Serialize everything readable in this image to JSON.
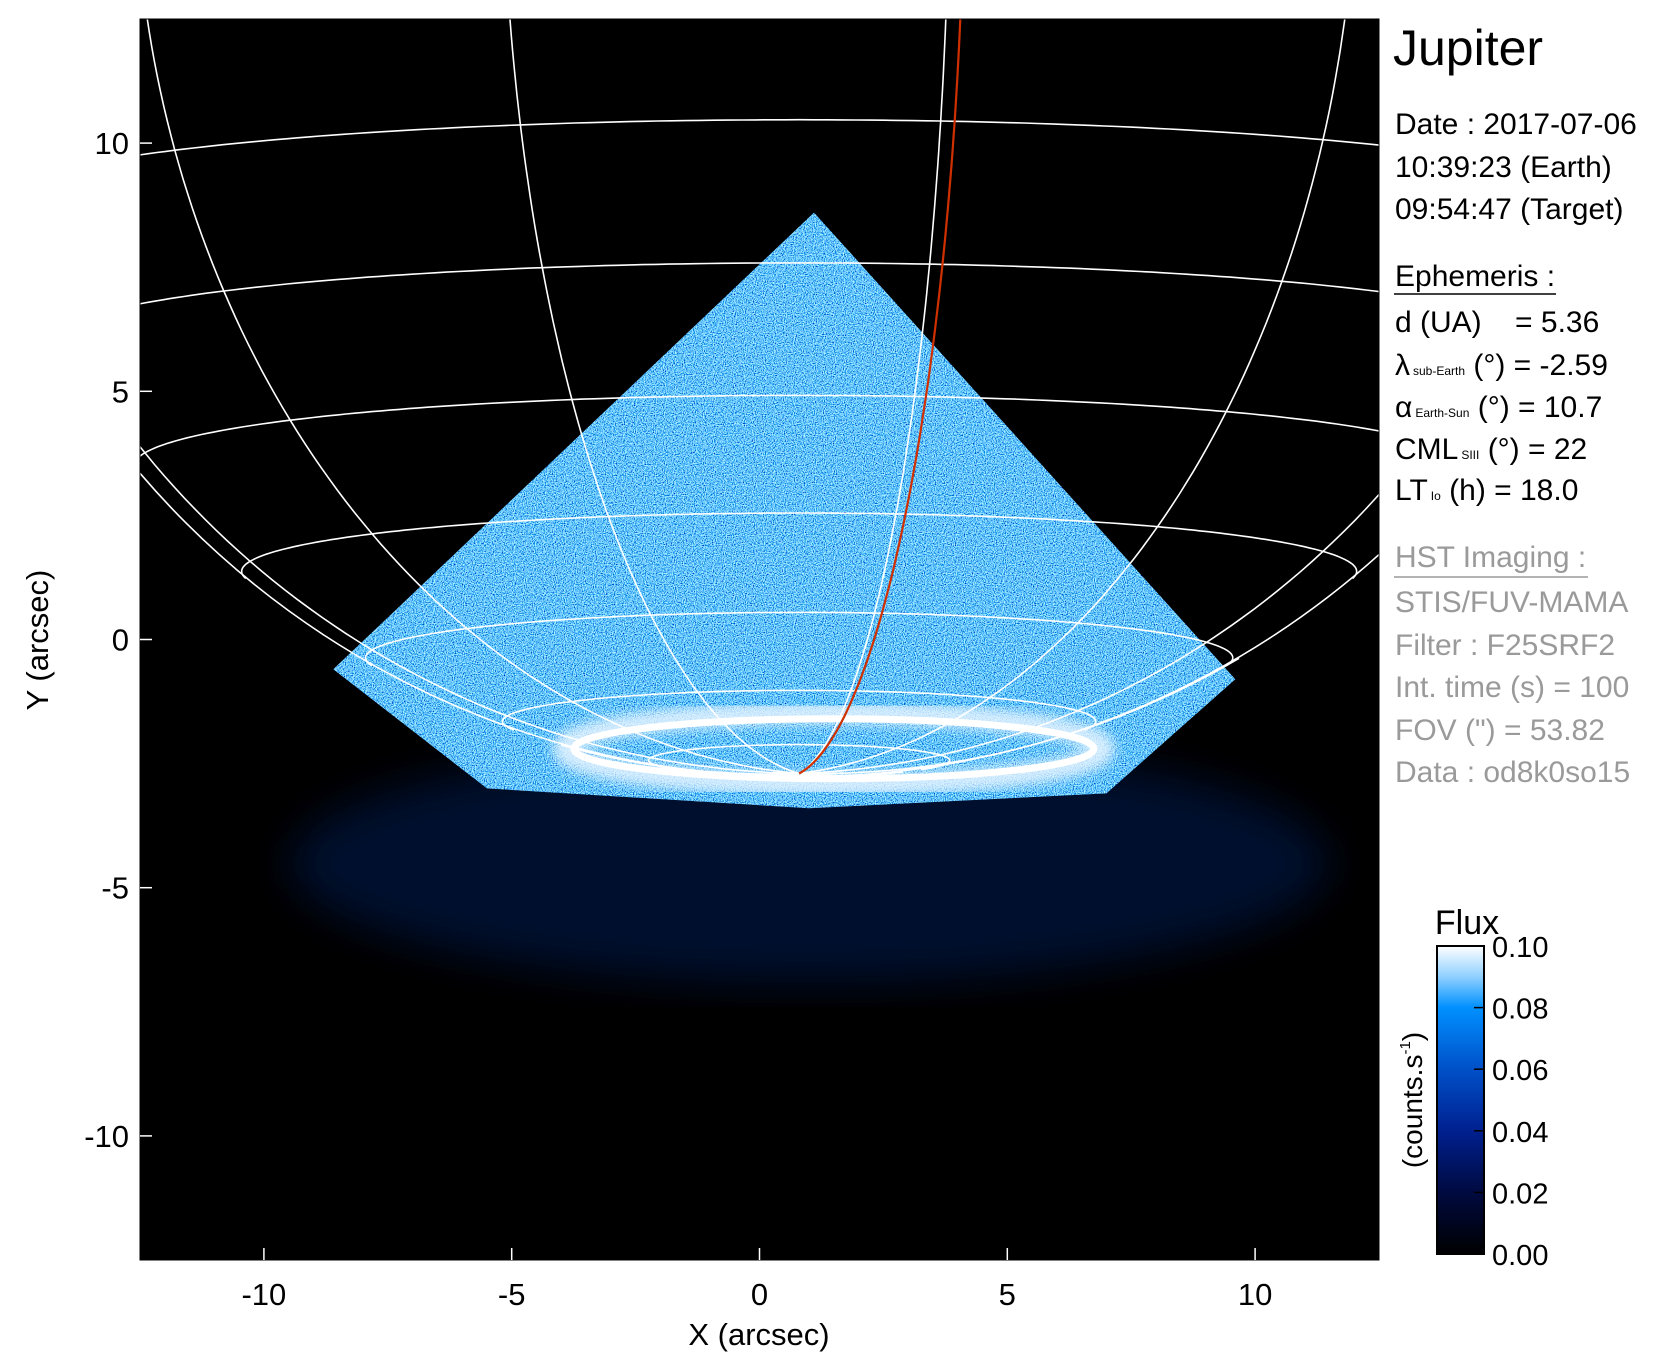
{
  "chart_data": {
    "type": "heatmap",
    "title": "Jupiter",
    "xlabel": "X (arcsec)",
    "ylabel": "Y (arcsec)",
    "xlim": [
      -12.5,
      12.5
    ],
    "ylim": [
      -12.5,
      12.5
    ],
    "xticks": [
      -10,
      -5,
      0,
      5,
      10
    ],
    "yticks": [
      -10,
      -5,
      0,
      5,
      10
    ],
    "xtick_labels": [
      "-10",
      "-5",
      "0",
      "5",
      "10"
    ],
    "ytick_labels": [
      "-10",
      "-5",
      "0",
      "5",
      "10"
    ],
    "colorbar": {
      "title": "Flux",
      "unit_label": "(counts.s",
      "unit_sup": "-1",
      "unit_close": ")",
      "range": [
        0.0,
        0.1
      ],
      "ticks": [
        0.0,
        0.02,
        0.04,
        0.06,
        0.08,
        0.1
      ],
      "tick_labels": [
        "0.00",
        "0.02",
        "0.04",
        "0.06",
        "0.08",
        "0.10"
      ],
      "colormap": [
        "#000000",
        "#000a40",
        "#00208f",
        "#0050c8",
        "#0090ff",
        "#8fd0ff",
        "#ffffff"
      ]
    },
    "overlay": {
      "grid_color": "#ffffff",
      "highlight_meridian_color": "#d03000",
      "pole_arcsec": [
        0.8,
        -2.7
      ],
      "grid": "latitude/longitude grid, 10° parallels, 30° meridians",
      "auroral_oval_center_arcsec": [
        1.5,
        -2.2
      ]
    }
  },
  "info": {
    "date": "Date : 2017-07-06",
    "time_earth": "10:39:23 (Earth)",
    "time_target": "09:54:47 (Target)",
    "ephemeris_header": "Ephemeris :",
    "ephemeris": [
      {
        "sym": "d (UA)",
        "sub": "",
        "rest": "    = 5.36"
      },
      {
        "sym": "λ",
        "sub": "sub-Earth",
        "rest": " (°) = -2.59"
      },
      {
        "sym": "α",
        "sub": "Earth-Sun",
        "rest": " (°) = 10.7"
      },
      {
        "sym": "CML",
        "sub": "SIII",
        "rest": " (°) = 22"
      },
      {
        "sym": "LT",
        "sub": "Io",
        "rest": " (h) = 18.0"
      }
    ],
    "hst_header": "HST Imaging :",
    "hst": [
      "STIS/FUV-MAMA",
      "Filter : F25SRF2",
      "Int. time (s) = 100",
      "FOV (\") = 53.82",
      "Data : od8k0so15"
    ]
  }
}
